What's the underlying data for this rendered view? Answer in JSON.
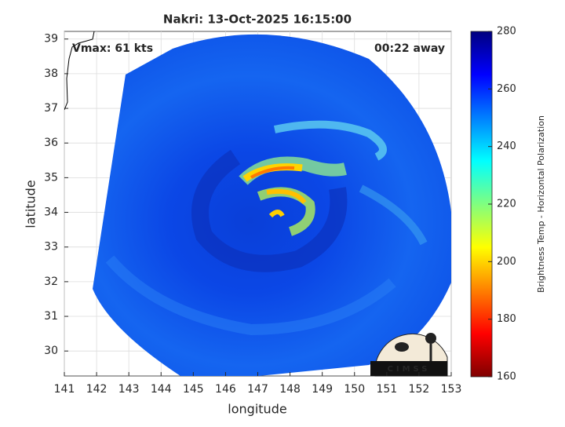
{
  "chart_data": {
    "type": "map",
    "title": "Nakri: 13-Oct-2025 16:15:00",
    "x_label": "longitude",
    "y_label": "latitude",
    "xlim": [
      141,
      153
    ],
    "ylim": [
      29.28,
      39.22
    ],
    "xticks": [
      141,
      142,
      143,
      144,
      145,
      146,
      147,
      148,
      149,
      150,
      151,
      152,
      153
    ],
    "yticks": [
      30,
      31,
      32,
      33,
      34,
      35,
      36,
      37,
      38,
      39
    ],
    "grid": true,
    "annotations": [
      "Vmax: 61 kts",
      "00:22 away"
    ],
    "colorbar": {
      "label": "Brightness Temp - Horizontal Polarization",
      "lim": [
        160,
        280
      ],
      "ticks": [
        160,
        180,
        200,
        220,
        240,
        260,
        280
      ]
    },
    "logo": "CIMSS"
  }
}
